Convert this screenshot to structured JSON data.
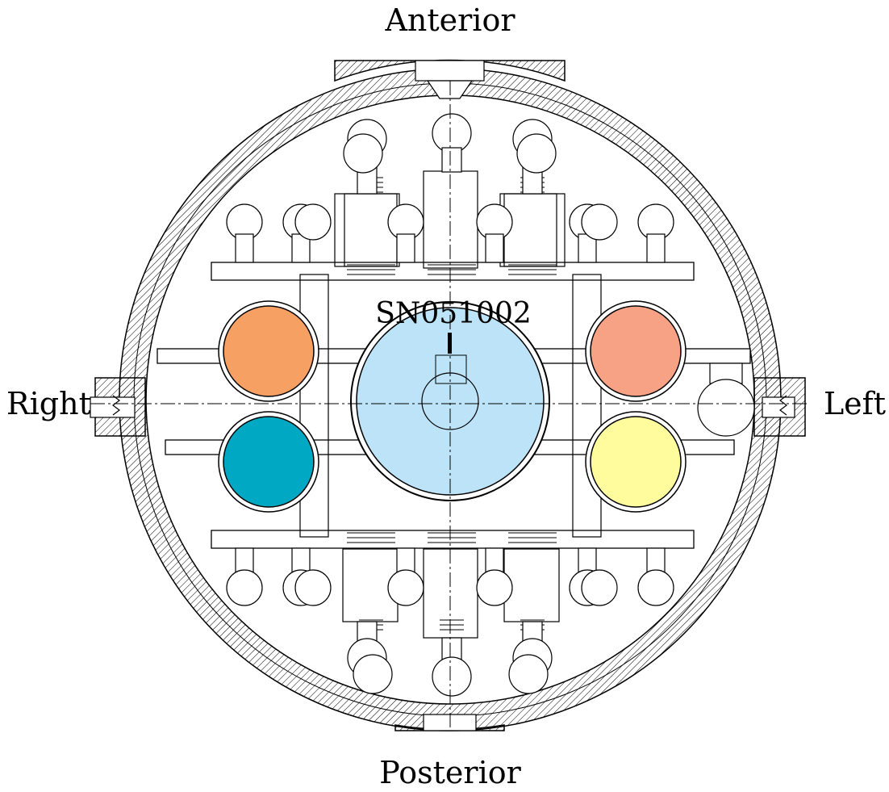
{
  "labels": {
    "anterior": "Anterior",
    "posterior": "Posterior",
    "right": "Right",
    "left": "Left",
    "serial": "SN051002"
  },
  "colors": {
    "outline": "#000000",
    "center_body": "#bde3f8",
    "upper_right_of_image": "#f7a185",
    "upper_left_of_image": "#f7a064",
    "lower_left_of_image": "#00a8c4",
    "lower_right_of_image": "#fffc9e"
  }
}
